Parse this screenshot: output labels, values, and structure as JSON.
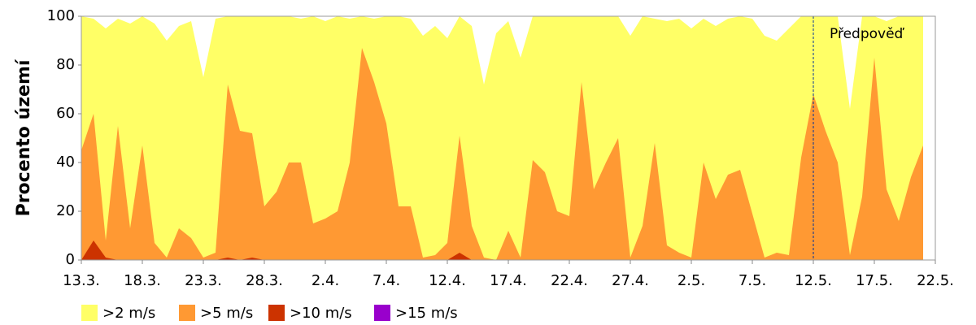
{
  "chart_data": {
    "type": "area",
    "y_label": "Procento území",
    "annotation": "Předpověď",
    "categories": [
      "13.3.",
      null,
      null,
      null,
      null,
      "18.3.",
      null,
      null,
      null,
      null,
      "23.3.",
      null,
      null,
      null,
      null,
      "28.3.",
      null,
      null,
      null,
      null,
      "2.4.",
      null,
      null,
      null,
      null,
      "7.4.",
      null,
      null,
      null,
      null,
      "12.4.",
      null,
      null,
      null,
      null,
      "17.4.",
      null,
      null,
      null,
      null,
      "22.4.",
      null,
      null,
      null,
      null,
      "27.4.",
      null,
      null,
      null,
      null,
      "2.5.",
      null,
      null,
      null,
      null,
      "7.5.",
      null,
      null,
      null,
      null,
      "12.5.",
      null,
      null,
      null,
      null,
      "17.5.",
      null,
      null,
      null,
      null,
      "22.5."
    ],
    "series": [
      {
        "name": ">2 m/s",
        "color": "#ffff66",
        "values": [
          100,
          99,
          95,
          99,
          97,
          100,
          97,
          90,
          96,
          98,
          75,
          99,
          100,
          100,
          100,
          100,
          100,
          100,
          99,
          100,
          98,
          100,
          99,
          100,
          99,
          100,
          100,
          99,
          92,
          96,
          91,
          100,
          96,
          72,
          93,
          98,
          83,
          100,
          100,
          100,
          100,
          100,
          100,
          100,
          100,
          92,
          100,
          99,
          98,
          99,
          95,
          99,
          96,
          99,
          100,
          99,
          92,
          90,
          95,
          100,
          100,
          100,
          100,
          62,
          100,
          100,
          98,
          100,
          100,
          100,
          null
        ]
      },
      {
        "name": ">5 m/s",
        "color": "#ff9933",
        "values": [
          45,
          60,
          8,
          55,
          13,
          47,
          7,
          1,
          13,
          9,
          1,
          3,
          72,
          53,
          52,
          22,
          28,
          40,
          40,
          15,
          17,
          20,
          40,
          87,
          73,
          56,
          22,
          22,
          1,
          2,
          7,
          51,
          14,
          1,
          0,
          12,
          1,
          41,
          36,
          20,
          18,
          73,
          29,
          40,
          50,
          1,
          14,
          48,
          6,
          3,
          1,
          40,
          25,
          35,
          37,
          19,
          1,
          3,
          2,
          42,
          68,
          53,
          40,
          2,
          26,
          83,
          29,
          16,
          34,
          47,
          null
        ]
      },
      {
        "name": ">10 m/s",
        "color": "#cc3300",
        "values": [
          0,
          8,
          1,
          0,
          0,
          0,
          0,
          0,
          0,
          0,
          0,
          0,
          1,
          0,
          1,
          0,
          0,
          0,
          0,
          0,
          0,
          0,
          0,
          0,
          0,
          0,
          0,
          0,
          0,
          0,
          0,
          3,
          0,
          0,
          0,
          0,
          0,
          0,
          0,
          0,
          0,
          0,
          0,
          0,
          0,
          0,
          0,
          0,
          0,
          0,
          0,
          0,
          0,
          0,
          0,
          0,
          0,
          0,
          0,
          0,
          0,
          0,
          0,
          0,
          0,
          0,
          0,
          0,
          0,
          0,
          null
        ]
      },
      {
        "name": ">15 m/s",
        "color": "#9900cc",
        "values": [
          0,
          0,
          0,
          0,
          0,
          0,
          0,
          0,
          0,
          0,
          0,
          0,
          0,
          0,
          0,
          0,
          0,
          0,
          0,
          0,
          0,
          0,
          0,
          0,
          0,
          0,
          0,
          0,
          0,
          0,
          0,
          0,
          0,
          0,
          0,
          0,
          0,
          0,
          0,
          0,
          0,
          0,
          0,
          0,
          0,
          0,
          0,
          0,
          0,
          0,
          0,
          0,
          0,
          0,
          0,
          0,
          0,
          0,
          0,
          0,
          0,
          0,
          0,
          0,
          0,
          0,
          0,
          0,
          0,
          0,
          null
        ]
      }
    ],
    "ylim": [
      0,
      100
    ],
    "yticks": [
      0,
      20,
      40,
      60,
      80,
      100
    ]
  }
}
